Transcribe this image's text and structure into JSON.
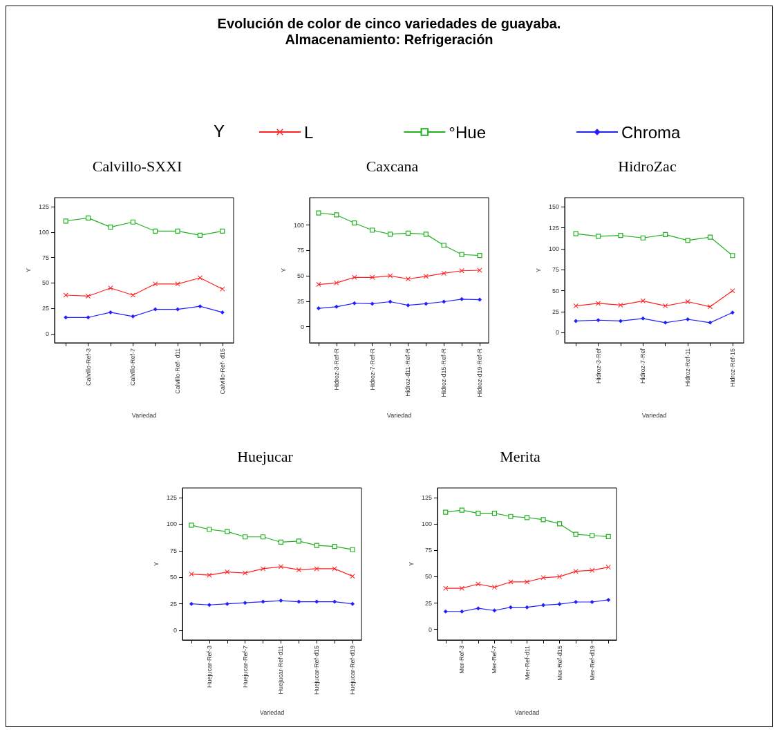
{
  "chart_data": [
    {
      "type": "other",
      "title": "Evolución de color de cinco variedades de guayaba.",
      "subtitle": "Almacenamiento: Refrigeración"
    },
    {
      "type": "line",
      "title": "Calvillo-SXXI",
      "xlabel": "Variedad",
      "ylabel": "Y",
      "legend": "top",
      "legend_title": "Y",
      "grid": false,
      "categories": [
        null,
        "Calvillo-Ref-3",
        null,
        "Calvillo-Ref-7",
        null,
        "Calvillo-Ref- d11",
        null,
        "Calvillo-Ref- d15"
      ],
      "ylim": [
        -9,
        134
      ],
      "yticks": [
        0,
        25,
        50,
        75,
        100,
        125
      ],
      "series": [
        {
          "name": "L",
          "color": "#ff2020",
          "marker": "cross",
          "values": [
            38,
            37,
            45,
            38,
            49,
            49,
            55,
            44
          ]
        },
        {
          "name": "°Hue",
          "color": "#20b020",
          "marker": "square",
          "values": [
            111,
            114,
            105,
            110,
            101,
            101,
            97,
            101
          ]
        },
        {
          "name": "Chroma",
          "color": "#2020ff",
          "marker": "diamond",
          "values": [
            16,
            16,
            21,
            17,
            24,
            24,
            27,
            21
          ]
        }
      ]
    },
    {
      "type": "line",
      "title": "Caxcana",
      "xlabel": "Variedad",
      "ylabel": "Y",
      "grid": false,
      "categories": [
        null,
        "Hidroz-3-Ref-R",
        null,
        "Hidroz-7-Ref-R",
        null,
        "Hidroz-d11-Ref-R",
        null,
        "Hidroz-d15-Ref-R",
        null,
        "Hidroz-d19-Ref-R"
      ],
      "ylim": [
        -16,
        127
      ],
      "yticks": [
        0,
        25,
        50,
        75,
        100
      ],
      "series": [
        {
          "color": "#ff2020",
          "marker": "cross",
          "values": [
            41.5,
            43,
            48.5,
            48.5,
            50,
            47,
            49.5,
            52.5,
            55,
            55.5
          ]
        },
        {
          "color": "#20b020",
          "marker": "square",
          "values": [
            112,
            110,
            102,
            95,
            91,
            92,
            91,
            80,
            71,
            70
          ]
        },
        {
          "color": "#2020ff",
          "marker": "diamond",
          "values": [
            18,
            19.5,
            23,
            22.5,
            24.5,
            21,
            22.5,
            24.5,
            27,
            26.5
          ]
        }
      ]
    },
    {
      "type": "line",
      "title": "HidroZac",
      "xlabel": "Variedad",
      "ylabel": "Y",
      "grid": false,
      "categories": [
        null,
        "Hidroz-3-Ref",
        null,
        "Hidroz-7-Ref",
        null,
        "Hidroz-Ref-11",
        null,
        "Hidroz-Ref-15"
      ],
      "ylim": [
        -12,
        161
      ],
      "yticks": [
        0,
        25,
        50,
        75,
        100,
        125,
        150
      ],
      "series": [
        {
          "color": "#ff2020",
          "marker": "cross",
          "values": [
            32,
            35,
            33,
            38,
            32,
            37,
            31,
            50
          ]
        },
        {
          "color": "#20b020",
          "marker": "square",
          "values": [
            118,
            115,
            116,
            113,
            117,
            110,
            114,
            92
          ]
        },
        {
          "color": "#2020ff",
          "marker": "diamond",
          "values": [
            14,
            15,
            14,
            17,
            12,
            16,
            12,
            24
          ]
        }
      ]
    },
    {
      "type": "line",
      "title": "Huejucar",
      "xlabel": "Variedad",
      "ylabel": "Y",
      "grid": false,
      "categories": [
        null,
        "Huejucar-Ref-3",
        null,
        "Huejucar-Ref-7",
        null,
        "Huejucar-Ref-d11",
        null,
        "Huejucar-Ref-d15",
        null,
        "Huejucar-Ref-d19"
      ],
      "ylim": [
        -9,
        134
      ],
      "yticks": [
        0,
        25,
        50,
        75,
        100,
        125
      ],
      "series": [
        {
          "color": "#ff2020",
          "marker": "cross",
          "values": [
            53,
            52,
            55,
            54,
            58,
            60,
            57,
            58,
            58,
            51
          ]
        },
        {
          "color": "#20b020",
          "marker": "square",
          "values": [
            99,
            95,
            93,
            88,
            88,
            83,
            84,
            80,
            79,
            76
          ]
        },
        {
          "color": "#2020ff",
          "marker": "diamond",
          "values": [
            25,
            24,
            25,
            26,
            27,
            28,
            27,
            27,
            27,
            25
          ]
        }
      ]
    },
    {
      "type": "line",
      "title": "Merita",
      "xlabel": "Variedad",
      "ylabel": "Y",
      "grid": false,
      "categories": [
        null,
        "Mer-Ref-3",
        null,
        "Mer-Ref-7",
        null,
        "Mer-Ref-d11",
        null,
        "Mer-Ref-d15",
        null,
        "Mer-Ref-d19",
        null
      ],
      "ylim": [
        -10,
        134
      ],
      "yticks": [
        0,
        25,
        50,
        75,
        100,
        125
      ],
      "series": [
        {
          "color": "#ff2020",
          "marker": "cross",
          "values": [
            39,
            39,
            43,
            40,
            45,
            45,
            49,
            50,
            55,
            56,
            59
          ]
        },
        {
          "color": "#20b020",
          "marker": "square",
          "values": [
            111,
            113,
            110,
            110,
            107,
            106,
            104,
            100,
            90,
            89,
            88
          ]
        },
        {
          "color": "#2020ff",
          "marker": "diamond",
          "values": [
            17,
            17,
            20,
            18,
            21,
            21,
            23,
            24,
            26,
            26,
            28
          ]
        }
      ]
    }
  ]
}
